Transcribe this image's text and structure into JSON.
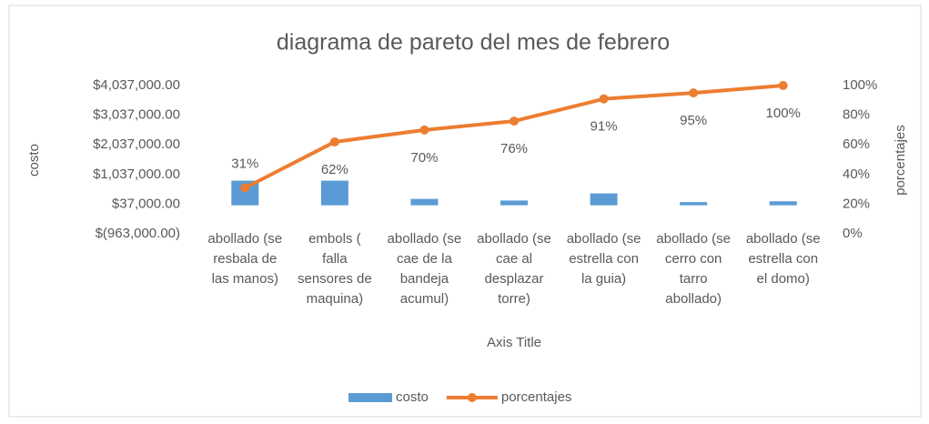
{
  "chart_data": {
    "type": "bar_line",
    "title": "diagrama de pareto del mes de febrero",
    "x_label": "Axis Title",
    "y_label": "costo",
    "y2_label": "porcentajes",
    "categories": [
      "abollado (se resbala de las manos)",
      "embols ( falla sensores de maquina)",
      "abollado (se cae de la bandeja acumul)",
      "abollado (se cae al desplazar torre)",
      "abollado (se estrella con la guia)",
      "abollado (se cerro con tarro abollado)",
      "abollado (se estrella con el domo)"
    ],
    "series": [
      {
        "name": "costo",
        "type": "bar",
        "color": "#5b9bd5",
        "values": [
          830000,
          830000,
          215000,
          160000,
          400000,
          107000,
          134000
        ]
      },
      {
        "name": "porcentajes",
        "type": "line",
        "axis": "y2",
        "color": "#ed7d31",
        "values": [
          31,
          62,
          70,
          76,
          91,
          95,
          100
        ],
        "value_labels": [
          "31%",
          "62%",
          "70%",
          "76%",
          "91%",
          "95%",
          "100%"
        ]
      }
    ],
    "ylim": [
      -963000,
      4037000
    ],
    "yticks": [
      {
        "value": -963000,
        "label": "$(963,000.00)"
      },
      {
        "value": 37000,
        "label": "$37,000.00"
      },
      {
        "value": 1037000,
        "label": "$1,037,000.00"
      },
      {
        "value": 2037000,
        "label": "$2,037,000.00"
      },
      {
        "value": 3037000,
        "label": "$3,037,000.00"
      },
      {
        "value": 4037000,
        "label": "$4,037,000.00"
      }
    ],
    "y2lim": [
      0,
      100
    ],
    "y2ticks": [
      {
        "value": 0,
        "label": "0%"
      },
      {
        "value": 20,
        "label": "20%"
      },
      {
        "value": 40,
        "label": "40%"
      },
      {
        "value": 60,
        "label": "60%"
      },
      {
        "value": 80,
        "label": "80%"
      },
      {
        "value": 100,
        "label": "100%"
      }
    ],
    "legend": "bottom"
  }
}
